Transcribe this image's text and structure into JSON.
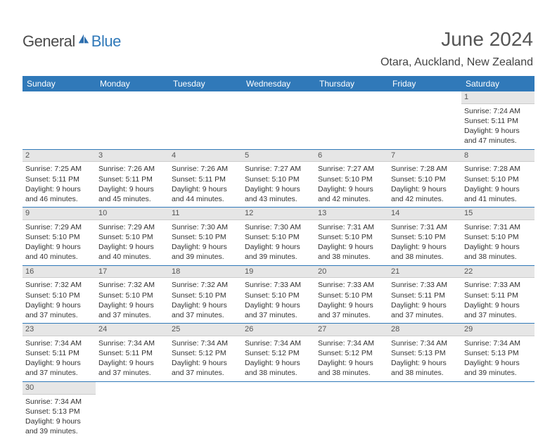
{
  "logo": {
    "text_general": "General",
    "text_blue": "Blue",
    "icon_fill": "#2d6faf"
  },
  "header": {
    "month_title": "June 2024",
    "location": "Otara, Auckland, New Zealand"
  },
  "colors": {
    "header_bg": "#3079b9",
    "header_text": "#ffffff",
    "daynum_bg": "#e6e6e6",
    "border": "#3079b9"
  },
  "day_headers": [
    "Sunday",
    "Monday",
    "Tuesday",
    "Wednesday",
    "Thursday",
    "Friday",
    "Saturday"
  ],
  "weeks": [
    [
      null,
      null,
      null,
      null,
      null,
      null,
      {
        "n": "1",
        "l1": "Sunrise: 7:24 AM",
        "l2": "Sunset: 5:11 PM",
        "l3": "Daylight: 9 hours",
        "l4": "and 47 minutes."
      }
    ],
    [
      {
        "n": "2",
        "l1": "Sunrise: 7:25 AM",
        "l2": "Sunset: 5:11 PM",
        "l3": "Daylight: 9 hours",
        "l4": "and 46 minutes."
      },
      {
        "n": "3",
        "l1": "Sunrise: 7:26 AM",
        "l2": "Sunset: 5:11 PM",
        "l3": "Daylight: 9 hours",
        "l4": "and 45 minutes."
      },
      {
        "n": "4",
        "l1": "Sunrise: 7:26 AM",
        "l2": "Sunset: 5:11 PM",
        "l3": "Daylight: 9 hours",
        "l4": "and 44 minutes."
      },
      {
        "n": "5",
        "l1": "Sunrise: 7:27 AM",
        "l2": "Sunset: 5:10 PM",
        "l3": "Daylight: 9 hours",
        "l4": "and 43 minutes."
      },
      {
        "n": "6",
        "l1": "Sunrise: 7:27 AM",
        "l2": "Sunset: 5:10 PM",
        "l3": "Daylight: 9 hours",
        "l4": "and 42 minutes."
      },
      {
        "n": "7",
        "l1": "Sunrise: 7:28 AM",
        "l2": "Sunset: 5:10 PM",
        "l3": "Daylight: 9 hours",
        "l4": "and 42 minutes."
      },
      {
        "n": "8",
        "l1": "Sunrise: 7:28 AM",
        "l2": "Sunset: 5:10 PM",
        "l3": "Daylight: 9 hours",
        "l4": "and 41 minutes."
      }
    ],
    [
      {
        "n": "9",
        "l1": "Sunrise: 7:29 AM",
        "l2": "Sunset: 5:10 PM",
        "l3": "Daylight: 9 hours",
        "l4": "and 40 minutes."
      },
      {
        "n": "10",
        "l1": "Sunrise: 7:29 AM",
        "l2": "Sunset: 5:10 PM",
        "l3": "Daylight: 9 hours",
        "l4": "and 40 minutes."
      },
      {
        "n": "11",
        "l1": "Sunrise: 7:30 AM",
        "l2": "Sunset: 5:10 PM",
        "l3": "Daylight: 9 hours",
        "l4": "and 39 minutes."
      },
      {
        "n": "12",
        "l1": "Sunrise: 7:30 AM",
        "l2": "Sunset: 5:10 PM",
        "l3": "Daylight: 9 hours",
        "l4": "and 39 minutes."
      },
      {
        "n": "13",
        "l1": "Sunrise: 7:31 AM",
        "l2": "Sunset: 5:10 PM",
        "l3": "Daylight: 9 hours",
        "l4": "and 38 minutes."
      },
      {
        "n": "14",
        "l1": "Sunrise: 7:31 AM",
        "l2": "Sunset: 5:10 PM",
        "l3": "Daylight: 9 hours",
        "l4": "and 38 minutes."
      },
      {
        "n": "15",
        "l1": "Sunrise: 7:31 AM",
        "l2": "Sunset: 5:10 PM",
        "l3": "Daylight: 9 hours",
        "l4": "and 38 minutes."
      }
    ],
    [
      {
        "n": "16",
        "l1": "Sunrise: 7:32 AM",
        "l2": "Sunset: 5:10 PM",
        "l3": "Daylight: 9 hours",
        "l4": "and 37 minutes."
      },
      {
        "n": "17",
        "l1": "Sunrise: 7:32 AM",
        "l2": "Sunset: 5:10 PM",
        "l3": "Daylight: 9 hours",
        "l4": "and 37 minutes."
      },
      {
        "n": "18",
        "l1": "Sunrise: 7:32 AM",
        "l2": "Sunset: 5:10 PM",
        "l3": "Daylight: 9 hours",
        "l4": "and 37 minutes."
      },
      {
        "n": "19",
        "l1": "Sunrise: 7:33 AM",
        "l2": "Sunset: 5:10 PM",
        "l3": "Daylight: 9 hours",
        "l4": "and 37 minutes."
      },
      {
        "n": "20",
        "l1": "Sunrise: 7:33 AM",
        "l2": "Sunset: 5:10 PM",
        "l3": "Daylight: 9 hours",
        "l4": "and 37 minutes."
      },
      {
        "n": "21",
        "l1": "Sunrise: 7:33 AM",
        "l2": "Sunset: 5:11 PM",
        "l3": "Daylight: 9 hours",
        "l4": "and 37 minutes."
      },
      {
        "n": "22",
        "l1": "Sunrise: 7:33 AM",
        "l2": "Sunset: 5:11 PM",
        "l3": "Daylight: 9 hours",
        "l4": "and 37 minutes."
      }
    ],
    [
      {
        "n": "23",
        "l1": "Sunrise: 7:34 AM",
        "l2": "Sunset: 5:11 PM",
        "l3": "Daylight: 9 hours",
        "l4": "and 37 minutes."
      },
      {
        "n": "24",
        "l1": "Sunrise: 7:34 AM",
        "l2": "Sunset: 5:11 PM",
        "l3": "Daylight: 9 hours",
        "l4": "and 37 minutes."
      },
      {
        "n": "25",
        "l1": "Sunrise: 7:34 AM",
        "l2": "Sunset: 5:12 PM",
        "l3": "Daylight: 9 hours",
        "l4": "and 37 minutes."
      },
      {
        "n": "26",
        "l1": "Sunrise: 7:34 AM",
        "l2": "Sunset: 5:12 PM",
        "l3": "Daylight: 9 hours",
        "l4": "and 38 minutes."
      },
      {
        "n": "27",
        "l1": "Sunrise: 7:34 AM",
        "l2": "Sunset: 5:12 PM",
        "l3": "Daylight: 9 hours",
        "l4": "and 38 minutes."
      },
      {
        "n": "28",
        "l1": "Sunrise: 7:34 AM",
        "l2": "Sunset: 5:13 PM",
        "l3": "Daylight: 9 hours",
        "l4": "and 38 minutes."
      },
      {
        "n": "29",
        "l1": "Sunrise: 7:34 AM",
        "l2": "Sunset: 5:13 PM",
        "l3": "Daylight: 9 hours",
        "l4": "and 39 minutes."
      }
    ],
    [
      {
        "n": "30",
        "l1": "Sunrise: 7:34 AM",
        "l2": "Sunset: 5:13 PM",
        "l3": "Daylight: 9 hours",
        "l4": "and 39 minutes."
      },
      null,
      null,
      null,
      null,
      null,
      null
    ]
  ]
}
